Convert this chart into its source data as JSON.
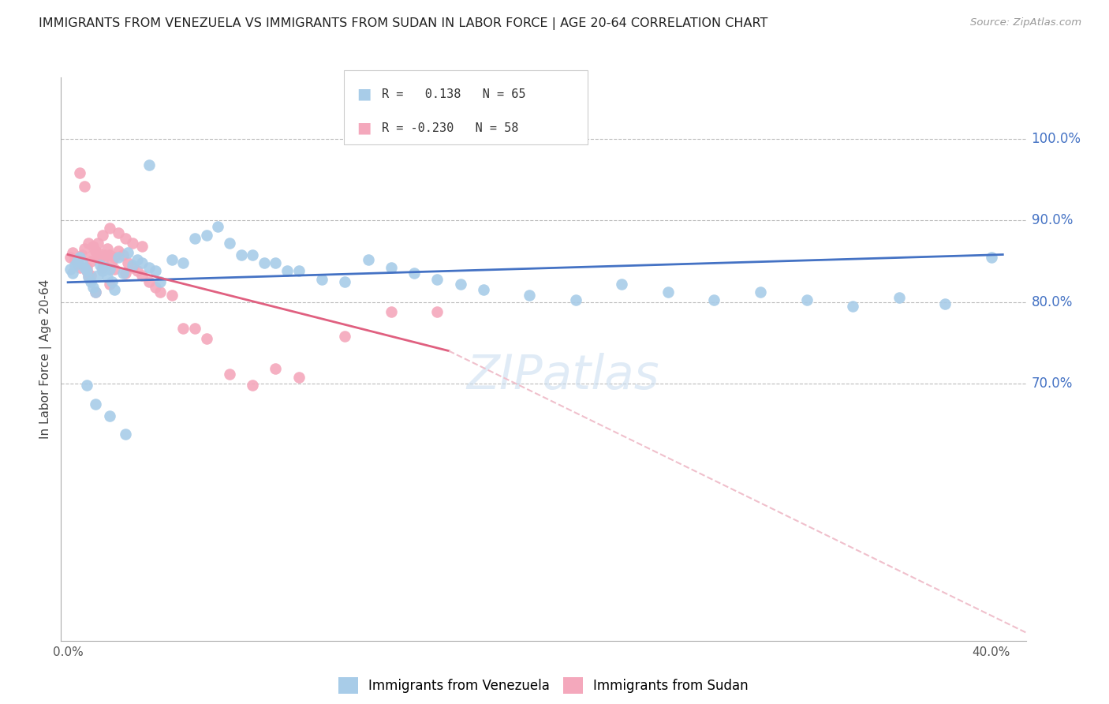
{
  "title": "IMMIGRANTS FROM VENEZUELA VS IMMIGRANTS FROM SUDAN IN LABOR FORCE | AGE 20-64 CORRELATION CHART",
  "source": "Source: ZipAtlas.com",
  "ylabel": "In Labor Force | Age 20-64",
  "background_color": "#ffffff",
  "venezuela_color": "#A8CCE8",
  "sudan_color": "#F4A8BC",
  "trend_venezuela_color": "#4472C4",
  "trend_sudan_color": "#E06080",
  "trend_sudan_dashed_color": "#F0C0CC",
  "legend_venezuela_label": "Immigrants from Venezuela",
  "legend_sudan_label": "Immigrants from Sudan",
  "R_venezuela": 0.138,
  "N_venezuela": 65,
  "R_sudan": -0.23,
  "N_sudan": 58,
  "xlim": [
    -0.003,
    0.415
  ],
  "ylim": [
    0.385,
    1.075
  ],
  "xticks": [
    0.0,
    0.05,
    0.1,
    0.15,
    0.2,
    0.25,
    0.3,
    0.35,
    0.4
  ],
  "xticklabels": [
    "0.0%",
    "",
    "",
    "",
    "",
    "",
    "",
    "",
    "40.0%"
  ],
  "yticks_right": [
    0.7,
    0.8,
    0.9,
    1.0
  ],
  "yticklabels_right": [
    "70.0%",
    "80.0%",
    "90.0%",
    "100.0%"
  ],
  "venezuela_x": [
    0.001,
    0.002,
    0.003,
    0.004,
    0.005,
    0.006,
    0.007,
    0.008,
    0.009,
    0.01,
    0.011,
    0.012,
    0.013,
    0.014,
    0.015,
    0.016,
    0.017,
    0.018,
    0.019,
    0.02,
    0.022,
    0.024,
    0.026,
    0.028,
    0.03,
    0.032,
    0.035,
    0.038,
    0.04,
    0.045,
    0.05,
    0.055,
    0.06,
    0.065,
    0.07,
    0.075,
    0.08,
    0.085,
    0.09,
    0.095,
    0.1,
    0.11,
    0.12,
    0.13,
    0.14,
    0.15,
    0.16,
    0.17,
    0.18,
    0.2,
    0.22,
    0.24,
    0.26,
    0.28,
    0.3,
    0.32,
    0.34,
    0.36,
    0.38,
    0.4,
    0.008,
    0.012,
    0.018,
    0.025,
    0.035
  ],
  "venezuela_y": [
    0.84,
    0.835,
    0.845,
    0.85,
    0.855,
    0.848,
    0.842,
    0.838,
    0.83,
    0.825,
    0.818,
    0.812,
    0.832,
    0.845,
    0.838,
    0.842,
    0.83,
    0.84,
    0.825,
    0.815,
    0.855,
    0.835,
    0.86,
    0.845,
    0.852,
    0.848,
    0.842,
    0.838,
    0.825,
    0.852,
    0.848,
    0.878,
    0.882,
    0.892,
    0.872,
    0.858,
    0.858,
    0.848,
    0.848,
    0.838,
    0.838,
    0.828,
    0.825,
    0.852,
    0.842,
    0.835,
    0.828,
    0.822,
    0.815,
    0.808,
    0.802,
    0.822,
    0.812,
    0.802,
    0.812,
    0.802,
    0.795,
    0.805,
    0.798,
    0.855,
    0.698,
    0.675,
    0.66,
    0.638,
    0.968
  ],
  "sudan_x": [
    0.001,
    0.002,
    0.003,
    0.004,
    0.005,
    0.006,
    0.007,
    0.008,
    0.009,
    0.01,
    0.011,
    0.012,
    0.013,
    0.014,
    0.015,
    0.016,
    0.017,
    0.018,
    0.019,
    0.02,
    0.022,
    0.024,
    0.026,
    0.028,
    0.03,
    0.032,
    0.035,
    0.038,
    0.04,
    0.045,
    0.05,
    0.055,
    0.06,
    0.07,
    0.08,
    0.09,
    0.1,
    0.12,
    0.14,
    0.16,
    0.008,
    0.01,
    0.012,
    0.015,
    0.018,
    0.005,
    0.007,
    0.009,
    0.011,
    0.013,
    0.015,
    0.018,
    0.022,
    0.025,
    0.028,
    0.032,
    0.02,
    0.025
  ],
  "sudan_y": [
    0.855,
    0.86,
    0.852,
    0.848,
    0.842,
    0.858,
    0.865,
    0.842,
    0.832,
    0.85,
    0.858,
    0.862,
    0.86,
    0.855,
    0.85,
    0.858,
    0.865,
    0.858,
    0.85,
    0.855,
    0.862,
    0.858,
    0.848,
    0.842,
    0.838,
    0.832,
    0.825,
    0.818,
    0.812,
    0.808,
    0.768,
    0.768,
    0.755,
    0.712,
    0.698,
    0.718,
    0.708,
    0.758,
    0.788,
    0.788,
    0.838,
    0.832,
    0.812,
    0.842,
    0.822,
    0.958,
    0.942,
    0.872,
    0.868,
    0.872,
    0.882,
    0.89,
    0.885,
    0.878,
    0.872,
    0.868,
    0.84,
    0.835
  ],
  "trend_v_x0": 0.0,
  "trend_v_x1": 0.405,
  "trend_v_y0": 0.824,
  "trend_v_y1": 0.858,
  "trend_s_solid_x0": 0.0,
  "trend_s_solid_x1": 0.165,
  "trend_s_solid_y0": 0.858,
  "trend_s_solid_y1": 0.74,
  "trend_s_dash_x0": 0.165,
  "trend_s_dash_x1": 0.415,
  "trend_s_dash_y0": 0.74,
  "trend_s_dash_y1": 0.395
}
